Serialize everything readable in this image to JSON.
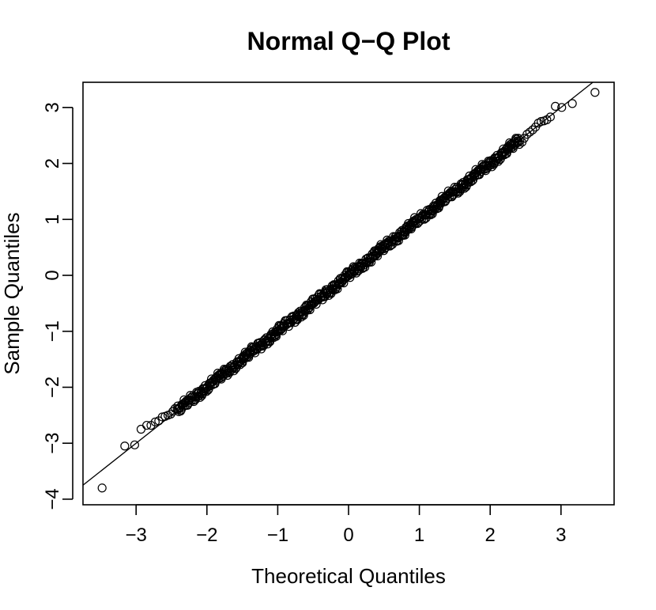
{
  "chart_data": {
    "type": "scatter",
    "title": "Normal Q−Q Plot",
    "xlabel": "Theoretical Quantiles",
    "ylabel": "Sample Quantiles",
    "xlim": [
      -3.75,
      3.75
    ],
    "ylim": [
      -4.1,
      3.45
    ],
    "x_ticks": [
      {
        "value": -3,
        "label": "−3"
      },
      {
        "value": -2,
        "label": "−2"
      },
      {
        "value": -1,
        "label": "−1"
      },
      {
        "value": 0,
        "label": "0"
      },
      {
        "value": 1,
        "label": "1"
      },
      {
        "value": 2,
        "label": "2"
      },
      {
        "value": 3,
        "label": "3"
      }
    ],
    "y_ticks": [
      {
        "value": -4,
        "label": "−4"
      },
      {
        "value": -3,
        "label": "−3"
      },
      {
        "value": -2,
        "label": "−2"
      },
      {
        "value": -1,
        "label": "−1"
      },
      {
        "value": 0,
        "label": "0"
      },
      {
        "value": 1,
        "label": "1"
      },
      {
        "value": 2,
        "label": "2"
      },
      {
        "value": 3,
        "label": "3"
      }
    ],
    "reference_line": {
      "intercept": 0.0,
      "slope": 1.0
    },
    "outlier_points": [
      {
        "x": -3.48,
        "y": -3.8
      },
      {
        "x": -3.16,
        "y": -3.05
      },
      {
        "x": -3.02,
        "y": -3.03
      },
      {
        "x": -2.93,
        "y": -2.75
      },
      {
        "x": -2.85,
        "y": -2.68
      },
      {
        "x": -2.79,
        "y": -2.68
      },
      {
        "x": -2.73,
        "y": -2.62
      },
      {
        "x": -2.68,
        "y": -2.6
      },
      {
        "x": -2.63,
        "y": -2.53
      },
      {
        "x": -2.59,
        "y": -2.52
      },
      {
        "x": -2.55,
        "y": -2.5
      },
      {
        "x": -2.51,
        "y": -2.48
      },
      {
        "x": -2.48,
        "y": -2.43
      },
      {
        "x": -2.45,
        "y": -2.38
      },
      {
        "x": 2.45,
        "y": 2.38
      },
      {
        "x": 2.48,
        "y": 2.45
      },
      {
        "x": 2.52,
        "y": 2.52
      },
      {
        "x": 2.56,
        "y": 2.56
      },
      {
        "x": 2.6,
        "y": 2.6
      },
      {
        "x": 2.64,
        "y": 2.65
      },
      {
        "x": 2.68,
        "y": 2.72
      },
      {
        "x": 2.72,
        "y": 2.75
      },
      {
        "x": 2.76,
        "y": 2.76
      },
      {
        "x": 2.8,
        "y": 2.78
      },
      {
        "x": 2.85,
        "y": 2.83
      },
      {
        "x": 2.92,
        "y": 3.02
      },
      {
        "x": 3.01,
        "y": 3.0
      },
      {
        "x": 3.16,
        "y": 3.07
      },
      {
        "x": 3.48,
        "y": 3.27
      }
    ],
    "bulk_series": {
      "x_start": -2.42,
      "x_end": 2.42,
      "count": 600
    },
    "grid": false,
    "legend": "none"
  }
}
